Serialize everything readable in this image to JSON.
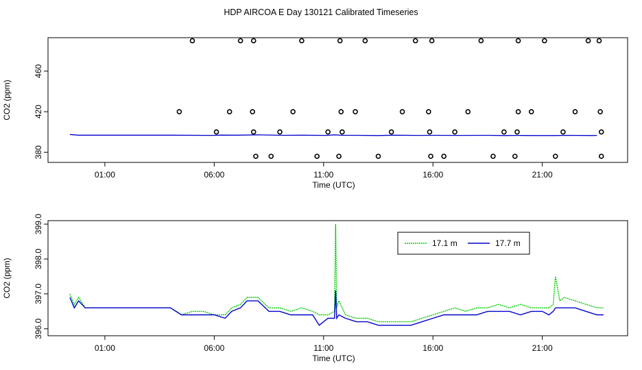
{
  "title": "HDP AIRCOA E  Day 130121  Calibrated Timeseries",
  "chart_data": [
    {
      "type": "scatter",
      "xlabel": "Time (UTC)",
      "ylabel": "CO2 (ppm)",
      "xlim": [
        -1.6,
        24.9
      ],
      "ylim": [
        370,
        493
      ],
      "x_ticks": [
        1,
        6,
        11,
        16,
        21
      ],
      "x_tick_labels": [
        "01:00",
        "06:00",
        "11:00",
        "16:00",
        "21:00"
      ],
      "y_ticks": [
        380,
        420,
        460
      ],
      "y_tick_labels": [
        "380",
        "420",
        "460"
      ],
      "line_series": {
        "color": "#0000cc",
        "x": [
          -0.6,
          -0.2,
          0.5,
          2,
          4,
          5.9,
          6.3,
          7,
          8,
          9.2,
          10,
          11.1,
          11.5,
          11.9,
          12.5,
          13.5,
          14.2,
          15.3,
          16,
          17.2,
          18.5,
          19.3,
          19.9,
          20.5,
          21.6,
          22.1,
          23.3,
          23.5
        ],
        "values": [
          397.5,
          396.8,
          396.8,
          396.8,
          396.8,
          396.6,
          396.9,
          396.8,
          397.2,
          396.7,
          396.8,
          396.6,
          397.2,
          396.7,
          396.7,
          396.5,
          396.8,
          396.6,
          396.7,
          396.6,
          396.7,
          396.5,
          396.6,
          396.5,
          396.5,
          396.7,
          396.5,
          396.6
        ]
      },
      "scatter_series": {
        "marker": "open-circle",
        "x": [
          4.4,
          5.0,
          6.1,
          6.7,
          7.2,
          7.8,
          7.75,
          7.8,
          7.9,
          8.6,
          9.0,
          9.6,
          10.0,
          10.7,
          11.2,
          11.75,
          11.8,
          11.85,
          11.7,
          12.45,
          12.9,
          13.5,
          14.1,
          14.6,
          15.2,
          15.8,
          15.85,
          15.9,
          15.95,
          16.5,
          17.0,
          17.6,
          18.2,
          18.75,
          19.25,
          19.75,
          19.85,
          19.9,
          19.9,
          20.5,
          21.1,
          21.6,
          21.95,
          22.5,
          23.1,
          23.6,
          23.65,
          23.7,
          23.7
        ],
        "values": [
          420,
          490,
          400,
          420,
          490,
          490,
          420,
          400,
          376,
          376,
          400,
          420,
          490,
          376,
          400,
          490,
          420,
          400,
          376,
          420,
          490,
          376,
          400,
          420,
          490,
          420,
          400,
          376,
          490,
          376,
          400,
          420,
          490,
          376,
          400,
          376,
          400,
          420,
          490,
          420,
          490,
          376,
          400,
          420,
          490,
          490,
          420,
          400,
          376
        ]
      }
    },
    {
      "type": "line",
      "xlabel": "Time (UTC)",
      "ylabel": "CO2 (ppm)",
      "xlim": [
        -1.6,
        24.9
      ],
      "ylim": [
        395.8,
        399.1
      ],
      "x_ticks": [
        1,
        6,
        11,
        16,
        21
      ],
      "x_tick_labels": [
        "01:00",
        "06:00",
        "11:00",
        "16:00",
        "21:00"
      ],
      "y_ticks": [
        396.0,
        397.0,
        398.0,
        399.0
      ],
      "y_tick_labels": [
        "396.0",
        "397.0",
        "398.0",
        "399.0"
      ],
      "legend_position": "top-right",
      "series": [
        {
          "name": "17.1 m",
          "color": "#00cc00",
          "dotted": true,
          "x": [
            -0.6,
            -0.4,
            -0.2,
            0.1,
            0.5,
            1.0,
            2.0,
            3.0,
            4.0,
            4.5,
            5.0,
            5.5,
            6.0,
            6.5,
            6.8,
            7.2,
            7.5,
            8.0,
            8.5,
            9.0,
            9.5,
            10.0,
            10.5,
            10.8,
            11.2,
            11.5,
            11.55,
            11.6,
            11.7,
            12.0,
            12.5,
            13.0,
            13.5,
            14.0,
            14.5,
            15.0,
            15.5,
            16.0,
            16.5,
            17.0,
            17.5,
            18.0,
            18.5,
            19.0,
            19.5,
            20.0,
            20.5,
            21.0,
            21.3,
            21.5,
            21.6,
            21.8,
            22.0,
            22.5,
            23.0,
            23.5,
            23.8
          ],
          "values": [
            397.0,
            396.7,
            396.9,
            396.6,
            396.6,
            396.6,
            396.6,
            396.6,
            396.6,
            396.4,
            396.5,
            396.5,
            396.4,
            396.4,
            396.6,
            396.7,
            396.9,
            396.9,
            396.6,
            396.6,
            396.5,
            396.6,
            396.5,
            396.4,
            396.4,
            396.5,
            399.0,
            396.6,
            396.8,
            396.4,
            396.3,
            396.3,
            396.2,
            396.2,
            396.2,
            396.2,
            396.3,
            396.4,
            396.5,
            396.6,
            396.5,
            396.6,
            396.6,
            396.7,
            396.6,
            396.7,
            396.6,
            396.6,
            396.6,
            396.7,
            397.5,
            396.8,
            396.9,
            396.8,
            396.7,
            396.6,
            396.6
          ]
        },
        {
          "name": "17.7 m",
          "color": "#0000cc",
          "dotted": false,
          "x": [
            -0.6,
            -0.4,
            -0.2,
            0.1,
            0.5,
            1.0,
            2.0,
            3.0,
            4.0,
            4.5,
            5.0,
            5.5,
            6.0,
            6.5,
            6.8,
            7.2,
            7.5,
            8.0,
            8.5,
            9.0,
            9.5,
            10.0,
            10.5,
            10.8,
            11.2,
            11.5,
            11.55,
            11.6,
            11.7,
            12.0,
            12.5,
            13.0,
            13.5,
            14.0,
            14.5,
            15.0,
            15.5,
            16.0,
            16.5,
            17.0,
            17.5,
            18.0,
            18.5,
            19.0,
            19.5,
            20.0,
            20.5,
            21.0,
            21.3,
            21.5,
            21.6,
            21.8,
            22.0,
            22.5,
            23.0,
            23.5,
            23.8
          ],
          "values": [
            396.9,
            396.6,
            396.8,
            396.6,
            396.6,
            396.6,
            396.6,
            396.6,
            396.6,
            396.4,
            396.4,
            396.4,
            396.4,
            396.3,
            396.5,
            396.6,
            396.8,
            396.8,
            396.5,
            396.5,
            396.4,
            396.4,
            396.4,
            396.1,
            396.3,
            396.3,
            397.1,
            396.3,
            396.4,
            396.3,
            396.2,
            396.2,
            396.1,
            396.1,
            396.1,
            396.1,
            396.2,
            396.3,
            396.4,
            396.4,
            396.4,
            396.4,
            396.5,
            396.5,
            396.5,
            396.4,
            396.5,
            396.5,
            396.4,
            396.5,
            396.6,
            396.6,
            396.6,
            396.6,
            396.5,
            396.4,
            396.4
          ]
        }
      ]
    }
  ]
}
